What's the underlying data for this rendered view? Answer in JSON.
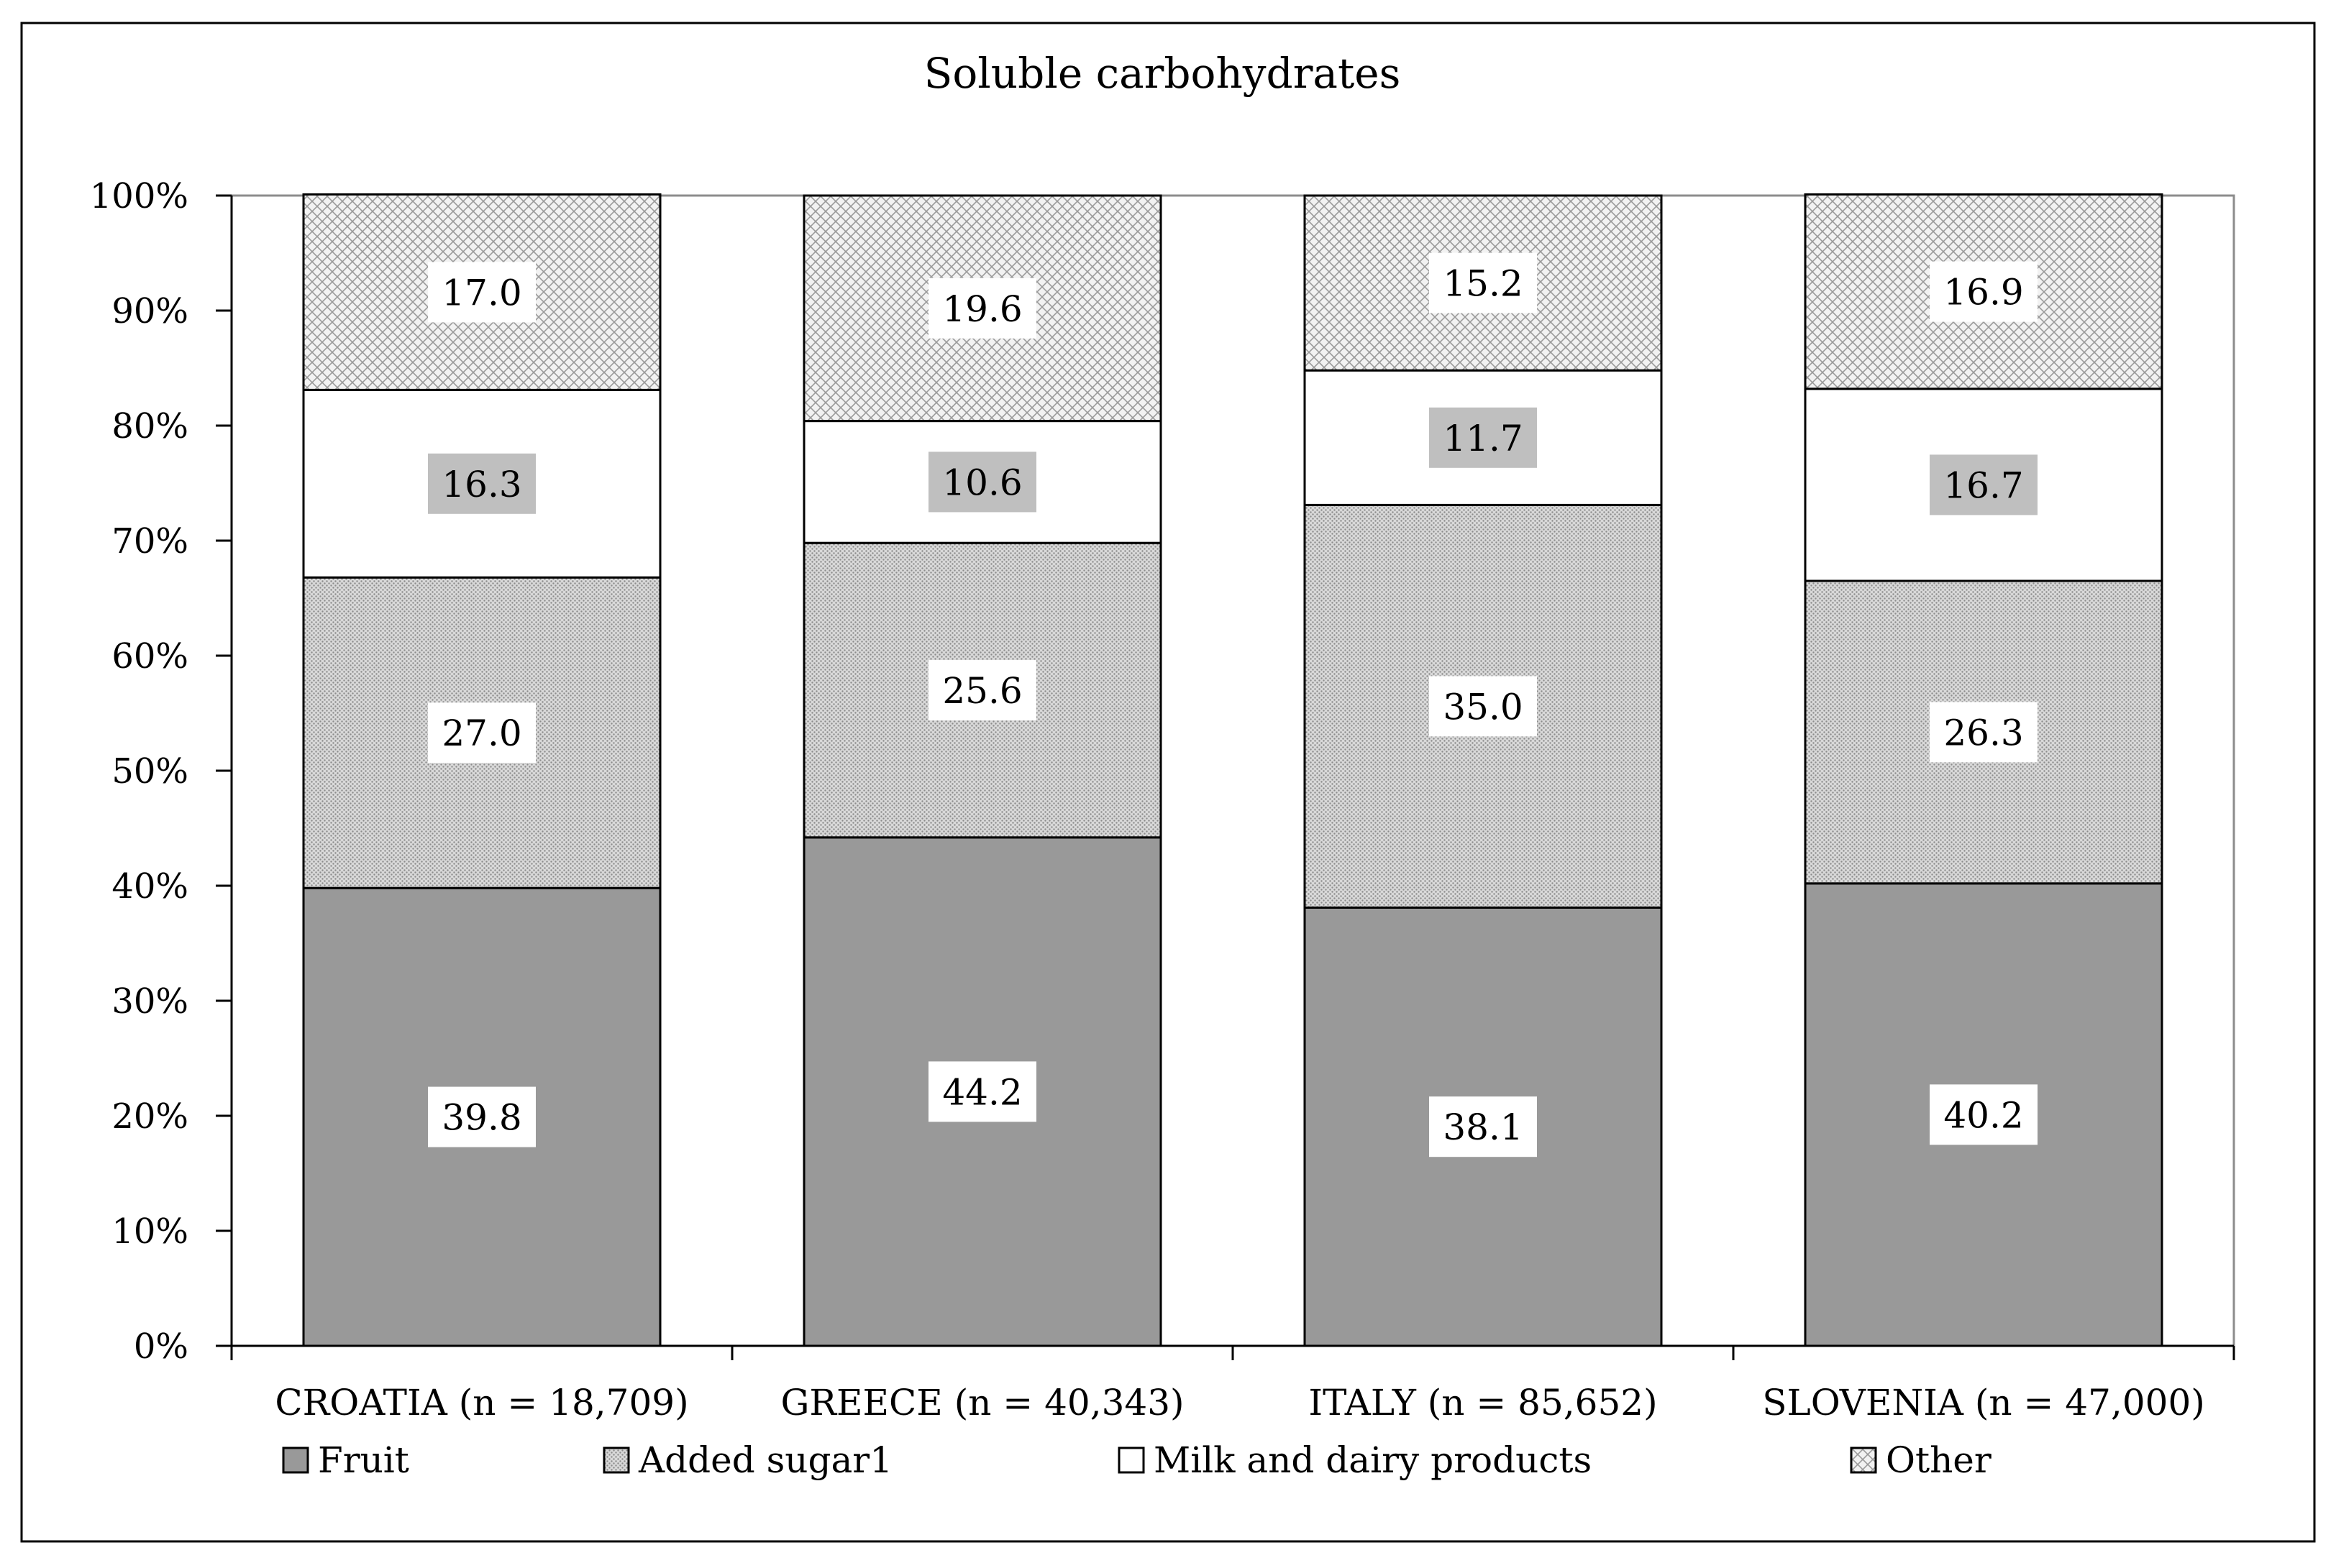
{
  "chart_data": {
    "type": "bar",
    "stacked": true,
    "title": "Soluble carbohydrates",
    "categories": [
      "CROATIA (n = 18,709)",
      "GREECE (n = 40,343)",
      "ITALY (n = 85,652)",
      "SLOVENIA (n = 47,000)"
    ],
    "series": [
      {
        "name": "Fruit",
        "values": [
          39.8,
          44.2,
          38.1,
          40.2
        ],
        "color": "#999999",
        "pattern": "solid",
        "label_bg": "#ffffff"
      },
      {
        "name": "Added sugar1",
        "values": [
          27.0,
          25.6,
          35.0,
          26.3
        ],
        "color": "#d0d0d0",
        "pattern": "fine-dots",
        "label_bg": "#ffffff"
      },
      {
        "name": "Milk and dairy products",
        "values": [
          16.3,
          10.6,
          11.7,
          16.7
        ],
        "color": "#ffffff",
        "pattern": "solid",
        "label_bg": "#bfbfbf"
      },
      {
        "name": "Other",
        "values": [
          17.0,
          19.6,
          15.2,
          16.9
        ],
        "color": "#e6e6e6",
        "pattern": "crosshatch",
        "label_bg": "#ffffff"
      }
    ],
    "y_ticks": [
      "0%",
      "10%",
      "20%",
      "30%",
      "40%",
      "50%",
      "60%",
      "70%",
      "80%",
      "90%",
      "100%"
    ],
    "ylim": [
      0,
      100
    ],
    "legend_position": "bottom",
    "grid": false
  }
}
